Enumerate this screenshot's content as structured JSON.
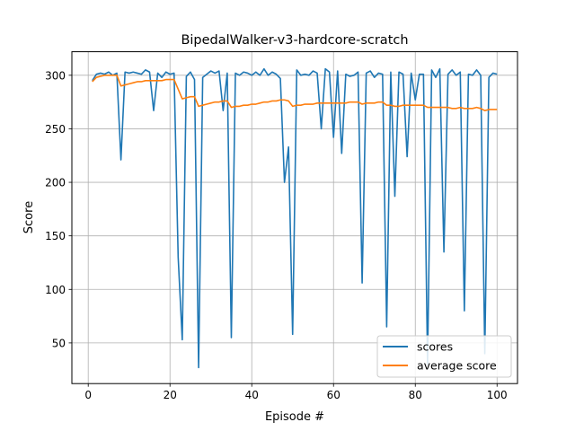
{
  "chart_data": {
    "type": "line",
    "title": "BipedalWalker-v3-hardcore-scratch",
    "xlabel": "Episode #",
    "ylabel": "Score",
    "xlim": [
      -4,
      105
    ],
    "ylim": [
      12,
      322
    ],
    "grid": true,
    "legend_position": "lower right",
    "x_ticks": [
      0,
      20,
      40,
      60,
      80,
      100
    ],
    "y_ticks": [
      50,
      100,
      150,
      200,
      250,
      300
    ],
    "x": [
      1,
      2,
      3,
      4,
      5,
      6,
      7,
      8,
      9,
      10,
      11,
      12,
      13,
      14,
      15,
      16,
      17,
      18,
      19,
      20,
      21,
      22,
      23,
      24,
      25,
      26,
      27,
      28,
      29,
      30,
      31,
      32,
      33,
      34,
      35,
      36,
      37,
      38,
      39,
      40,
      41,
      42,
      43,
      44,
      45,
      46,
      47,
      48,
      49,
      50,
      51,
      52,
      53,
      54,
      55,
      56,
      57,
      58,
      59,
      60,
      61,
      62,
      63,
      64,
      65,
      66,
      67,
      68,
      69,
      70,
      71,
      72,
      73,
      74,
      75,
      76,
      77,
      78,
      79,
      80,
      81,
      82,
      83,
      84,
      85,
      86,
      87,
      88,
      89,
      90,
      91,
      92,
      93,
      94,
      95,
      96,
      97,
      98,
      99,
      100
    ],
    "series": [
      {
        "name": "scores",
        "color": "#1f77b4",
        "values": [
          295,
          301,
          302,
          301,
          303,
          300,
          302,
          221,
          303,
          302,
          303,
          302,
          301,
          305,
          303,
          267,
          302,
          298,
          303,
          301,
          302,
          130,
          53,
          299,
          303,
          296,
          27,
          298,
          301,
          304,
          302,
          304,
          267,
          302,
          55,
          302,
          300,
          303,
          302,
          300,
          303,
          300,
          306,
          300,
          303,
          301,
          297,
          200,
          233,
          58,
          305,
          300,
          301,
          300,
          304,
          302,
          250,
          306,
          303,
          242,
          304,
          227,
          301,
          299,
          300,
          303,
          106,
          302,
          304,
          298,
          302,
          301,
          65,
          303,
          187,
          303,
          301,
          224,
          302,
          277,
          301,
          301,
          30,
          305,
          298,
          306,
          135,
          301,
          305,
          300,
          303,
          80,
          301,
          300,
          305,
          300,
          40,
          298,
          302,
          301
        ]
      },
      {
        "name": "average score",
        "color": "#ff7f0e",
        "values": [
          294,
          298,
          299,
          300,
          300,
          300,
          300,
          290,
          291,
          292,
          293,
          294,
          294,
          295,
          295,
          295,
          295,
          295,
          296,
          296,
          296,
          287,
          278,
          279,
          280,
          280,
          271,
          272,
          273,
          274,
          275,
          275,
          276,
          276,
          270,
          271,
          271,
          272,
          272,
          273,
          273,
          274,
          275,
          275,
          276,
          276,
          277,
          277,
          276,
          271,
          272,
          272,
          273,
          273,
          273,
          274,
          274,
          274,
          274,
          274,
          274,
          274,
          274,
          275,
          275,
          275,
          273,
          274,
          274,
          274,
          275,
          275,
          272,
          272,
          271,
          271,
          272,
          272,
          272,
          272,
          272,
          272,
          270,
          270,
          270,
          270,
          270,
          270,
          269,
          269,
          270,
          269,
          269,
          269,
          270,
          269,
          267,
          268,
          268,
          268
        ]
      }
    ]
  }
}
